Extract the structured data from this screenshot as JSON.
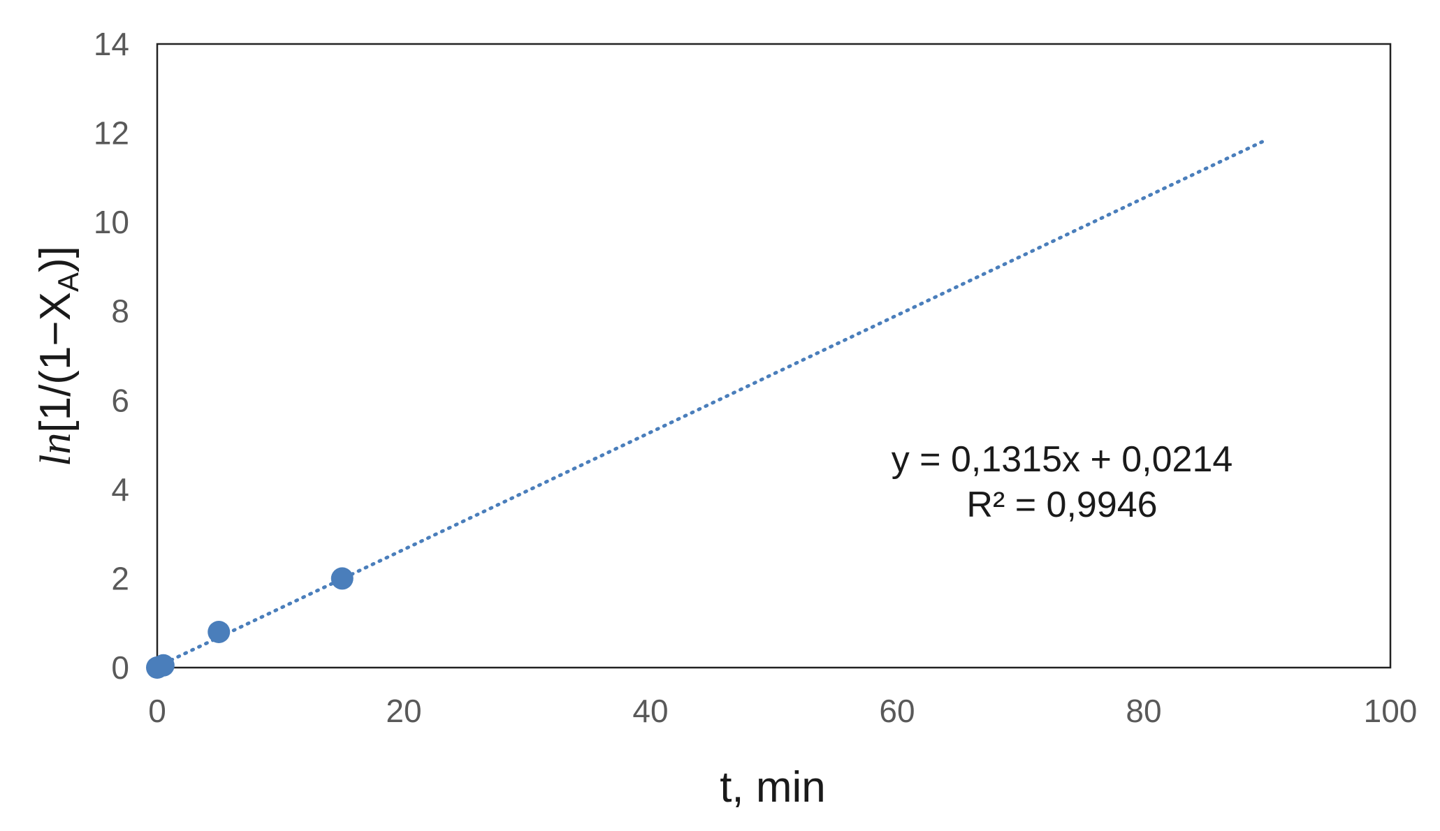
{
  "chart_data": {
    "type": "scatter",
    "title": "",
    "xlabel": "t, min",
    "ylabel": {
      "prefix": "ln",
      "main": "[1/(1−X",
      "sub": "A",
      "suffix": ")]"
    },
    "xlim": [
      0,
      100
    ],
    "ylim": [
      0,
      14
    ],
    "xticks": [
      0,
      20,
      40,
      60,
      80,
      100
    ],
    "yticks": [
      0,
      2,
      4,
      6,
      8,
      10,
      12,
      14
    ],
    "grid": false,
    "series": [
      {
        "points": [
          {
            "x": 0,
            "y": 0
          },
          {
            "x": 0.5,
            "y": 0.05
          },
          {
            "x": 5,
            "y": 0.8
          },
          {
            "x": 15,
            "y": 2.0
          }
        ],
        "color": "#4a7ebb"
      }
    ],
    "trendline": {
      "type": "linear",
      "style": "dotted",
      "slope": 0.1315,
      "intercept": 0.0214,
      "x_range": [
        0,
        90
      ],
      "color": "#4a7ebb",
      "equation_label": "y = 0,1315x + 0,0214",
      "r2_label": "R² = 0,9946"
    }
  }
}
